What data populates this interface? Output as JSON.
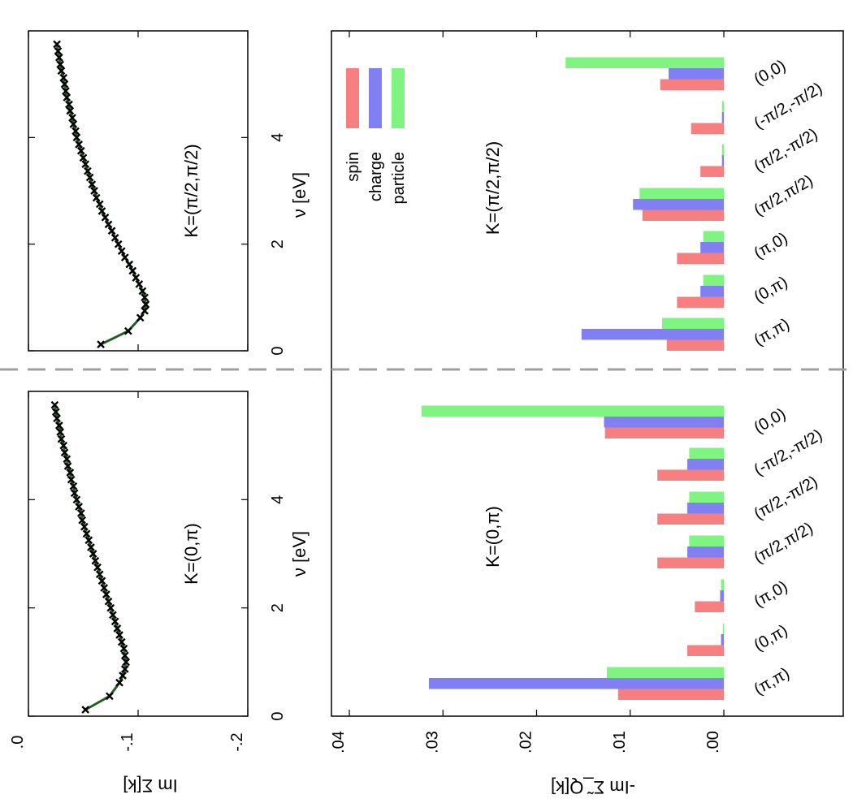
{
  "figure": {
    "top_ylabel": "Im Σ[k]",
    "top_xlabel": "ν [eV]",
    "bottom_ylabel": "-Im Σ̃_Q[k]",
    "legend": [
      "spin",
      "charge",
      "particle"
    ],
    "colors": {
      "spin": "#f77f7f",
      "charge": "#8080f4",
      "particle": "#80f480",
      "line": "#1f5f1f",
      "marker": "#000000",
      "divider": "#a0a0a0"
    }
  },
  "chart_data": [
    {
      "type": "line",
      "panel": "top-left",
      "annotation": "K=(0,π)",
      "xlabel": "ν [eV]",
      "ylabel": "Im Σ[k]",
      "xlim": [
        0,
        6
      ],
      "ylim": [
        0,
        -0.2
      ],
      "xticks": [
        "0",
        "2",
        "4"
      ],
      "yticks": [
        ".0",
        "-.1",
        "-.2"
      ],
      "x": [
        0.12,
        0.37,
        0.62,
        0.75,
        0.87,
        1.0,
        1.12,
        1.25,
        1.37,
        1.5,
        1.62,
        1.75,
        1.87,
        2.0,
        2.12,
        2.25,
        2.37,
        2.5,
        2.62,
        2.75,
        2.87,
        3.0,
        3.12,
        3.25,
        3.37,
        3.5,
        3.62,
        3.75,
        3.87,
        4.0,
        4.12,
        4.25,
        4.37,
        4.5,
        4.62,
        4.75,
        4.87,
        5.0,
        5.12,
        5.25,
        5.37,
        5.5,
        5.62,
        5.75
      ],
      "y": [
        -0.052,
        -0.074,
        -0.083,
        -0.086,
        -0.088,
        -0.089,
        -0.088,
        -0.087,
        -0.085,
        -0.083,
        -0.081,
        -0.079,
        -0.077,
        -0.075,
        -0.073,
        -0.071,
        -0.069,
        -0.067,
        -0.065,
        -0.063,
        -0.061,
        -0.059,
        -0.057,
        -0.055,
        -0.053,
        -0.051,
        -0.049,
        -0.048,
        -0.046,
        -0.044,
        -0.042,
        -0.041,
        -0.039,
        -0.038,
        -0.036,
        -0.035,
        -0.033,
        -0.032,
        -0.03,
        -0.029,
        -0.028,
        -0.026,
        -0.025,
        -0.024
      ]
    },
    {
      "type": "line",
      "panel": "top-right",
      "annotation": "K=(π/2,π/2)",
      "xlabel": "ν [eV]",
      "xlim": [
        0,
        6
      ],
      "ylim": [
        0,
        -0.2
      ],
      "xticks": [
        "0",
        "2",
        "4"
      ],
      "x": [
        0.12,
        0.37,
        0.62,
        0.75,
        0.87,
        1.0,
        1.12,
        1.25,
        1.37,
        1.5,
        1.62,
        1.75,
        1.87,
        2.0,
        2.12,
        2.25,
        2.37,
        2.5,
        2.62,
        2.75,
        2.87,
        3.0,
        3.12,
        3.25,
        3.37,
        3.5,
        3.62,
        3.75,
        3.87,
        4.0,
        4.12,
        4.25,
        4.37,
        4.5,
        4.62,
        4.75,
        4.87,
        5.0,
        5.12,
        5.25,
        5.37,
        5.5,
        5.62,
        5.75
      ],
      "y": [
        -0.066,
        -0.091,
        -0.102,
        -0.106,
        -0.107,
        -0.106,
        -0.104,
        -0.101,
        -0.098,
        -0.095,
        -0.092,
        -0.088,
        -0.085,
        -0.082,
        -0.079,
        -0.076,
        -0.073,
        -0.07,
        -0.067,
        -0.065,
        -0.062,
        -0.06,
        -0.058,
        -0.056,
        -0.054,
        -0.052,
        -0.05,
        -0.048,
        -0.046,
        -0.044,
        -0.043,
        -0.041,
        -0.04,
        -0.038,
        -0.037,
        -0.035,
        -0.034,
        -0.033,
        -0.032,
        -0.03,
        -0.029,
        -0.028,
        -0.027,
        -0.026
      ]
    },
    {
      "type": "bar",
      "panel": "bottom-left",
      "annotation": "K=(0,π)",
      "ylabel": "-Im Σ̃_Q[k]",
      "ylim": [
        0,
        0.04
      ],
      "yticks": [
        ".04",
        ".03",
        ".02",
        ".01",
        ".00"
      ],
      "categories": [
        "(π,π)",
        "(0,π)",
        "(π,0)",
        "(π/2,π/2)",
        "(π/2,-π/2)",
        "(-π/2,-π/2)",
        "(0,0)"
      ],
      "series": [
        {
          "name": "spin",
          "values": [
            0.0113,
            0.0039,
            0.0031,
            0.0071,
            0.0071,
            0.0071,
            0.0127
          ]
        },
        {
          "name": "charge",
          "values": [
            0.0315,
            0.0003,
            0.0004,
            0.0039,
            0.0039,
            0.0039,
            0.0128
          ]
        },
        {
          "name": "particle",
          "values": [
            0.0125,
            0.0001,
            0.0003,
            0.0037,
            0.0037,
            0.0037,
            0.0323
          ]
        }
      ]
    },
    {
      "type": "bar",
      "panel": "bottom-right",
      "annotation": "K=(π/2,π/2)",
      "ylim": [
        0,
        0.04
      ],
      "categories": [
        "(π,π)",
        "(0,π)",
        "(π,0)",
        "(π/2,π/2)",
        "(π/2,-π/2)",
        "(-π/2,-π/2)",
        "(0,0)"
      ],
      "series": [
        {
          "name": "spin",
          "values": [
            0.0061,
            0.005,
            0.005,
            0.0087,
            0.0025,
            0.0035,
            0.0068
          ]
        },
        {
          "name": "charge",
          "values": [
            0.0152,
            0.0025,
            0.0025,
            0.0097,
            0.0002,
            0.0002,
            0.0059
          ]
        },
        {
          "name": "particle",
          "values": [
            0.0066,
            0.0022,
            0.0022,
            0.009,
            0.0002,
            0.0002,
            0.0169
          ]
        }
      ]
    }
  ]
}
